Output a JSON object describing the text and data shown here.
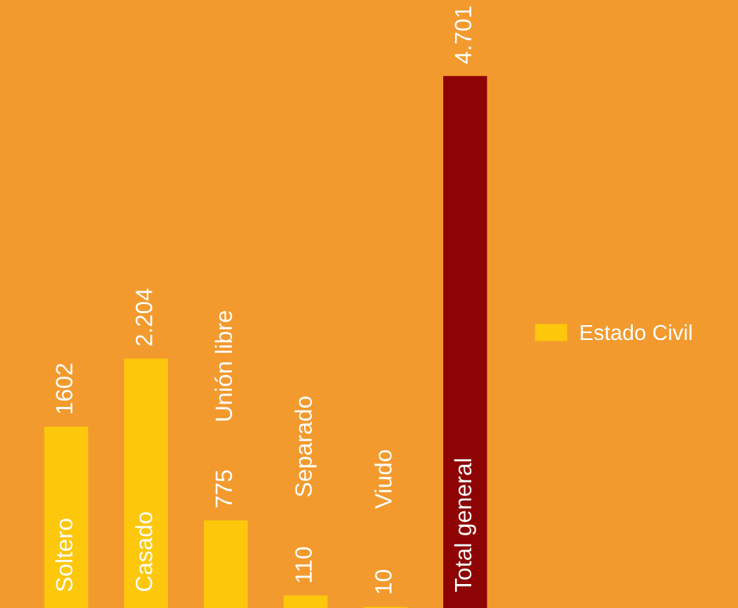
{
  "chart_data": {
    "type": "bar",
    "categories": [
      "Soltero",
      "Casado",
      "Unión libre",
      "Separado",
      "Viudo",
      "Total general"
    ],
    "series": [
      {
        "name": "Estado Civil",
        "color": "#fdc70c",
        "colors": [
          "#fdc70c",
          "#fdc70c",
          "#fdc70c",
          "#fdc70c",
          "#fdc70c",
          "#8e0405"
        ],
        "values": [
          1602,
          2204,
          775,
          110,
          10,
          4701
        ],
        "value_labels": [
          "1602",
          "2.204",
          "775",
          "110",
          "10",
          "4.701"
        ]
      }
    ],
    "legend": "right"
  }
}
